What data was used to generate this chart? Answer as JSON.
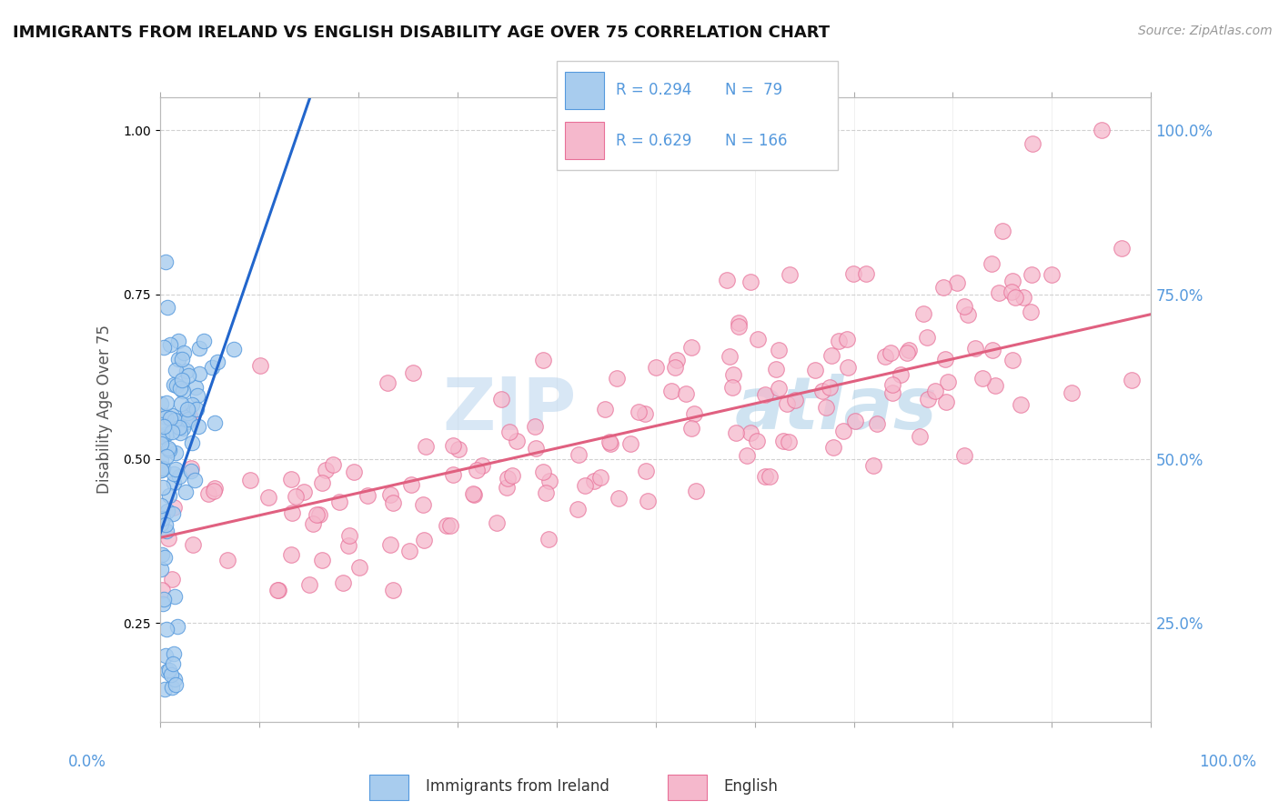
{
  "title": "IMMIGRANTS FROM IRELAND VS ENGLISH DISABILITY AGE OVER 75 CORRELATION CHART",
  "source": "Source: ZipAtlas.com",
  "ylabel": "Disability Age Over 75",
  "watermark_part1": "ZIP",
  "watermark_part2": "atlas",
  "legend": {
    "ireland_R": 0.294,
    "ireland_N": 79,
    "english_R": 0.629,
    "english_N": 166
  },
  "ireland_fill": "#a8ccee",
  "english_fill": "#f5b8cc",
  "ireland_edge": "#5599dd",
  "english_edge": "#e87098",
  "ireland_line_color": "#2266cc",
  "english_line_color": "#e06080",
  "right_yticks": [
    0.25,
    0.5,
    0.75,
    1.0
  ],
  "right_yticklabels": [
    "25.0%",
    "50.0%",
    "75.0%",
    "100.0%"
  ],
  "blue_label_color": "#5599dd",
  "xmin": 0.0,
  "xmax": 1.0,
  "ymin": 0.1,
  "ymax": 1.05,
  "ireland_trend_x0": 0.0,
  "ireland_trend_y0": 0.385,
  "ireland_trend_x1": 0.09,
  "ireland_trend_y1": 0.78,
  "english_trend_x0": 0.0,
  "english_trend_x1": 1.0,
  "english_trend_y0": 0.38,
  "english_trend_y1": 0.72
}
